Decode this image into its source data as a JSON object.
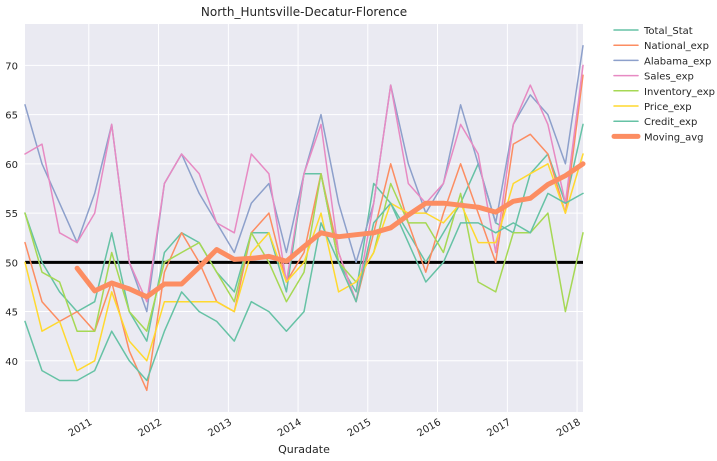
{
  "chart_data": {
    "type": "line",
    "title": "North_Huntsville-Decatur-Florence",
    "xlabel": "Quradate",
    "ylabel": "",
    "xlim": [
      "2010-02-01",
      "2018-02-01"
    ],
    "ylim": [
      34.8,
      74.2
    ],
    "y_ticks": [
      40,
      45,
      50,
      55,
      60,
      65,
      70
    ],
    "x_ticks": [
      {
        "label": "2011",
        "x": "2011-01-01"
      },
      {
        "label": "2012",
        "x": "2012-01-01"
      },
      {
        "label": "2013",
        "x": "2013-01-01"
      },
      {
        "label": "2014",
        "x": "2014-01-01"
      },
      {
        "label": "2015",
        "x": "2015-01-01"
      },
      {
        "label": "2016",
        "x": "2016-01-01"
      },
      {
        "label": "2017",
        "x": "2017-01-01"
      },
      {
        "label": "2018",
        "x": "2018-01-01"
      }
    ],
    "grid": true,
    "legend_position": "outside-right",
    "reference_line": {
      "y": 50,
      "color": "#000000"
    },
    "x": [
      "2010-02-01",
      "2010-05-01",
      "2010-08-01",
      "2010-11-01",
      "2011-02-01",
      "2011-05-01",
      "2011-08-01",
      "2011-11-01",
      "2012-02-01",
      "2012-05-01",
      "2012-08-01",
      "2012-11-01",
      "2013-02-01",
      "2013-05-01",
      "2013-08-01",
      "2013-11-01",
      "2014-02-01",
      "2014-05-01",
      "2014-08-01",
      "2014-11-01",
      "2015-02-01",
      "2015-05-01",
      "2015-08-01",
      "2015-11-01",
      "2016-02-01",
      "2016-05-01",
      "2016-08-01",
      "2016-11-01",
      "2017-02-01",
      "2017-05-01",
      "2017-08-01",
      "2017-11-01",
      "2018-02-01"
    ],
    "series": [
      {
        "name": "Total_Stat",
        "color": "#66c2a5",
        "width": 1.5,
        "values": [
          55,
          50,
          47,
          45,
          46,
          53,
          45,
          42,
          51,
          53,
          52,
          49,
          47,
          53,
          53,
          47,
          59,
          59,
          50,
          47,
          58,
          56,
          53,
          50,
          53,
          56,
          60,
          54,
          53,
          59,
          61,
          56,
          64
        ]
      },
      {
        "name": "National_exp",
        "color": "#fc8d62",
        "width": 1.5,
        "values": [
          52,
          46,
          44,
          45,
          43,
          48,
          41,
          37,
          49,
          53,
          50,
          46,
          45,
          53,
          55,
          48,
          51,
          59,
          51,
          46,
          53,
          60,
          54,
          49,
          55,
          60,
          55,
          50,
          62,
          63,
          61,
          55,
          69
        ]
      },
      {
        "name": "Alabama_exp",
        "color": "#8da0cb",
        "width": 1.5,
        "values": [
          66,
          60,
          56,
          52,
          57,
          64,
          50,
          45,
          58,
          61,
          57,
          54,
          51,
          56,
          58,
          51,
          59,
          65,
          56,
          50,
          56,
          68,
          60,
          55,
          58,
          66,
          60,
          54,
          64,
          67,
          65,
          60,
          72
        ]
      },
      {
        "name": "Sales_exp",
        "color": "#e78ac3",
        "width": 1.5,
        "values": [
          61,
          62,
          53,
          52,
          55,
          64,
          50,
          46,
          58,
          61,
          59,
          54,
          53,
          61,
          59,
          48,
          59,
          64,
          51,
          46,
          56,
          68,
          58,
          56,
          58,
          64,
          61,
          51,
          64,
          68,
          64,
          56,
          70
        ]
      },
      {
        "name": "Inventory_exp",
        "color": "#a6d854",
        "width": 1.5,
        "values": [
          55,
          49,
          48,
          43,
          43,
          51,
          45,
          43,
          50,
          51,
          52,
          49,
          46,
          53,
          50,
          46,
          49,
          59,
          50,
          48,
          51,
          58,
          54,
          54,
          51,
          57,
          48,
          47,
          53,
          53,
          55,
          45,
          53
        ]
      },
      {
        "name": "Price_exp",
        "color": "#ffd92f",
        "width": 1.5,
        "values": [
          50,
          43,
          44,
          39,
          40,
          47,
          42,
          40,
          46,
          46,
          46,
          46,
          45,
          51,
          53,
          48,
          50,
          55,
          47,
          48,
          51,
          56,
          55,
          55,
          54,
          56,
          52,
          52,
          58,
          59,
          60,
          55,
          61
        ]
      },
      {
        "name": "Credit_exp",
        "color": "#66c2a5",
        "width": 1.5,
        "values": [
          44,
          39,
          38,
          38,
          39,
          43,
          40,
          38,
          43,
          47,
          45,
          44,
          42,
          46,
          45,
          43,
          45,
          54,
          50,
          46,
          54,
          56,
          52,
          48,
          50,
          54,
          54,
          53,
          54,
          53,
          57,
          56,
          57
        ]
      },
      {
        "name": "Moving_avg",
        "color": "#fc8d62",
        "width": 5,
        "values": [
          null,
          null,
          null,
          49.4,
          47.1,
          47.9,
          47.3,
          46.5,
          47.8,
          47.8,
          49.5,
          51.3,
          50.3,
          50.4,
          50.6,
          50.1,
          51.6,
          53.0,
          52.6,
          52.8,
          53.0,
          53.5,
          54.8,
          56.0,
          56.0,
          55.8,
          55.6,
          55.1,
          56.2,
          56.5,
          57.9,
          58.8,
          60.0
        ]
      }
    ]
  }
}
